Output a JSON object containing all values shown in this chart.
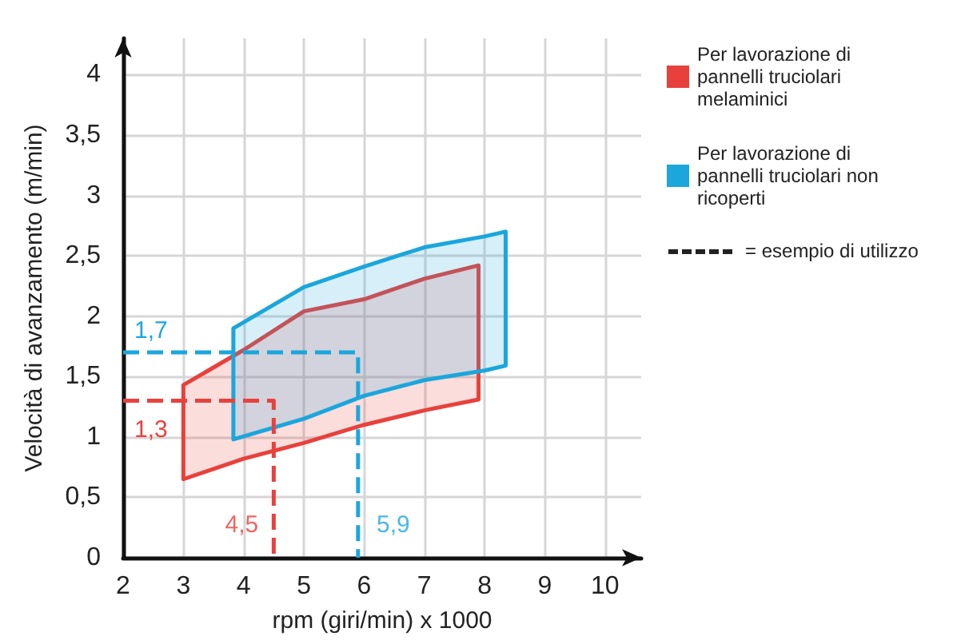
{
  "chart_data": {
    "type": "area",
    "xlabel": "rpm (giri/min) x 1000",
    "ylabel": "Velocità di avanzamento (m/min)",
    "xlim": [
      2,
      10.6
    ],
    "ylim": [
      0,
      4.3
    ],
    "xticks": [
      2,
      3,
      4,
      5,
      6,
      7,
      8,
      9,
      10
    ],
    "yticks": [
      0,
      {
        "value": 0.5,
        "label": "0,5"
      },
      1,
      {
        "value": 1.5,
        "label": "1,5"
      },
      2,
      {
        "value": 2.5,
        "label": "2,5"
      },
      3,
      {
        "value": 3.5,
        "label": "3,5"
      },
      4
    ],
    "grid": true,
    "legend": "top right",
    "marker": "none",
    "series": [
      {
        "name": "Per lavorazione di pannelli truciolari melaminici",
        "color": "#e8413c",
        "x": [
          3,
          4,
          5,
          6,
          7,
          7.9,
          7.9,
          7,
          6,
          5,
          4,
          3,
          3
        ],
        "values": [
          1.43,
          1.72,
          2.04,
          2.14,
          2.31,
          2.42,
          1.31,
          1.22,
          1.1,
          0.95,
          0.82,
          0.65,
          1.43
        ]
      },
      {
        "name": "Per lavorazione di pannelli truciolari non ricoperti",
        "color": "#1ba6dc",
        "x": [
          3.83,
          5,
          6,
          7,
          8,
          8.35,
          8.35,
          8,
          7,
          6,
          5,
          3.83,
          3.83
        ],
        "values": [
          1.9,
          2.24,
          2.41,
          2.57,
          2.66,
          2.7,
          1.59,
          1.55,
          1.47,
          1.34,
          1.15,
          0.98,
          1.9
        ]
      },
      {
        "type": "line",
        "color": "#e8413c",
        "line_style": "dashed",
        "x": [
          2,
          4.5,
          4.5
        ],
        "values": [
          1.3,
          1.3,
          0
        ],
        "value_labels": [
          "1,3",
          null,
          null
        ]
      },
      {
        "type": "line",
        "color": "#1ba6dc",
        "line_style": "dashed",
        "x": [
          2,
          5.9,
          5.9
        ],
        "values": [
          1.7,
          1.7,
          0
        ],
        "value_labels": [
          "1,7",
          null,
          null
        ]
      }
    ],
    "annotations": [
      {
        "text": "4,5",
        "x": 4.5,
        "y": 0
      },
      {
        "text": "5,9",
        "x": 5.9,
        "y": 0
      },
      "= esempio di utilizzo"
    ]
  }
}
